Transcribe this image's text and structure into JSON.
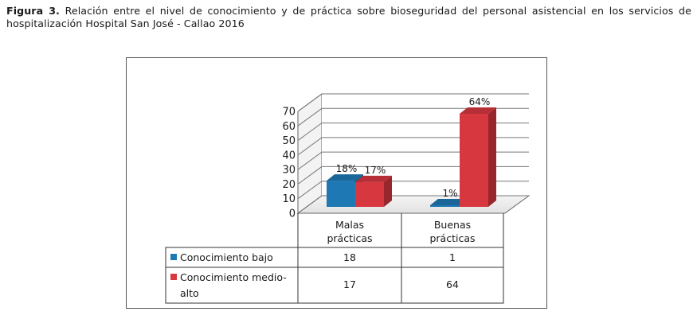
{
  "caption": {
    "label": "Figura 3.",
    "text": "Relación entre el nivel de conocimiento y de práctica sobre bioseguridad del personal asistencial en los servicios de hospitalización Hospital San José - Callao 2016"
  },
  "chart_data": {
    "type": "bar",
    "title": "",
    "xlabel": "",
    "ylabel": "",
    "ylim": [
      0,
      70
    ],
    "yticks": [
      "0",
      "10",
      "20",
      "30",
      "40",
      "50",
      "60",
      "70"
    ],
    "categories": [
      {
        "line1": "Malas",
        "line2": "prácticas"
      },
      {
        "line1": "Buenas",
        "line2": "prácticas"
      }
    ],
    "series": [
      {
        "name_line1": "Conocimiento bajo",
        "name_line2": "",
        "color": "#1e78b4",
        "values": [
          18,
          1
        ],
        "labels": [
          "18%",
          "1%"
        ],
        "table": [
          "18",
          "1"
        ]
      },
      {
        "name_line1": "Conocimiento medio-",
        "name_line2": "alto",
        "color": "#d7373f",
        "values": [
          17,
          64
        ],
        "labels": [
          "17%",
          "64%"
        ],
        "table": [
          "17",
          "64"
        ]
      }
    ],
    "grid": true,
    "legend": "data-table"
  }
}
